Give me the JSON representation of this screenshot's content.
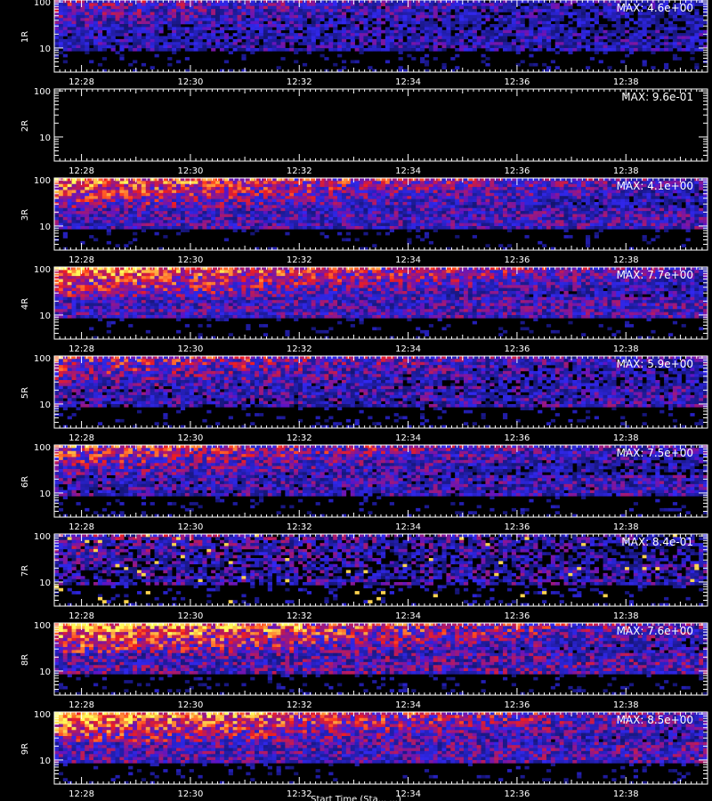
{
  "chart_data": {
    "type": "heatmap",
    "xlabel": "Start Time (Sta... ...)",
    "x_tick_labels": [
      "12:28",
      "12:30",
      "12:32",
      "12:34",
      "12:36",
      "12:38"
    ],
    "x_ticks_minutes": [
      28,
      30,
      32,
      34,
      36,
      38
    ],
    "x_range_minutes": [
      27.5,
      39.5
    ],
    "y_scale": "log",
    "y_range": [
      3,
      110
    ],
    "y_tick_labels": [
      "100",
      "10"
    ],
    "y_ticks": [
      100,
      10
    ],
    "colors": {
      "low": "#1010c0",
      "mid": "#d02020",
      "high": "#ffe040",
      "background": "#000000"
    },
    "panels": [
      {
        "label": "1R",
        "max_label": "MAX: 4.6e+00",
        "max": 4.6,
        "intensity": 0.55,
        "noise": 0.35
      },
      {
        "label": "2R",
        "max_label": "MAX: 9.6e-01",
        "max": 0.96,
        "intensity": 0.0,
        "noise": 0.0
      },
      {
        "label": "3R",
        "max_label": "MAX: 4.1e+00",
        "max": 4.1,
        "intensity": 0.9,
        "noise": 0.3
      },
      {
        "label": "4R",
        "max_label": "MAX: 7.7e+00",
        "max": 7.7,
        "intensity": 0.95,
        "noise": 0.3
      },
      {
        "label": "5R",
        "max_label": "MAX: 5.9e+00",
        "max": 5.9,
        "intensity": 0.7,
        "noise": 0.45
      },
      {
        "label": "6R",
        "max_label": "MAX: 7.5e+00",
        "max": 7.5,
        "intensity": 0.75,
        "noise": 0.4
      },
      {
        "label": "7R",
        "max_label": "MAX: 8.4e-01",
        "max": 0.84,
        "intensity": 0.45,
        "noise": 0.7
      },
      {
        "label": "8R",
        "max_label": "MAX: 7.6e+00",
        "max": 7.6,
        "intensity": 1.0,
        "noise": 0.45
      },
      {
        "label": "9R",
        "max_label": "MAX: 8.5e+00",
        "max": 8.5,
        "intensity": 1.0,
        "noise": 0.35
      }
    ]
  }
}
